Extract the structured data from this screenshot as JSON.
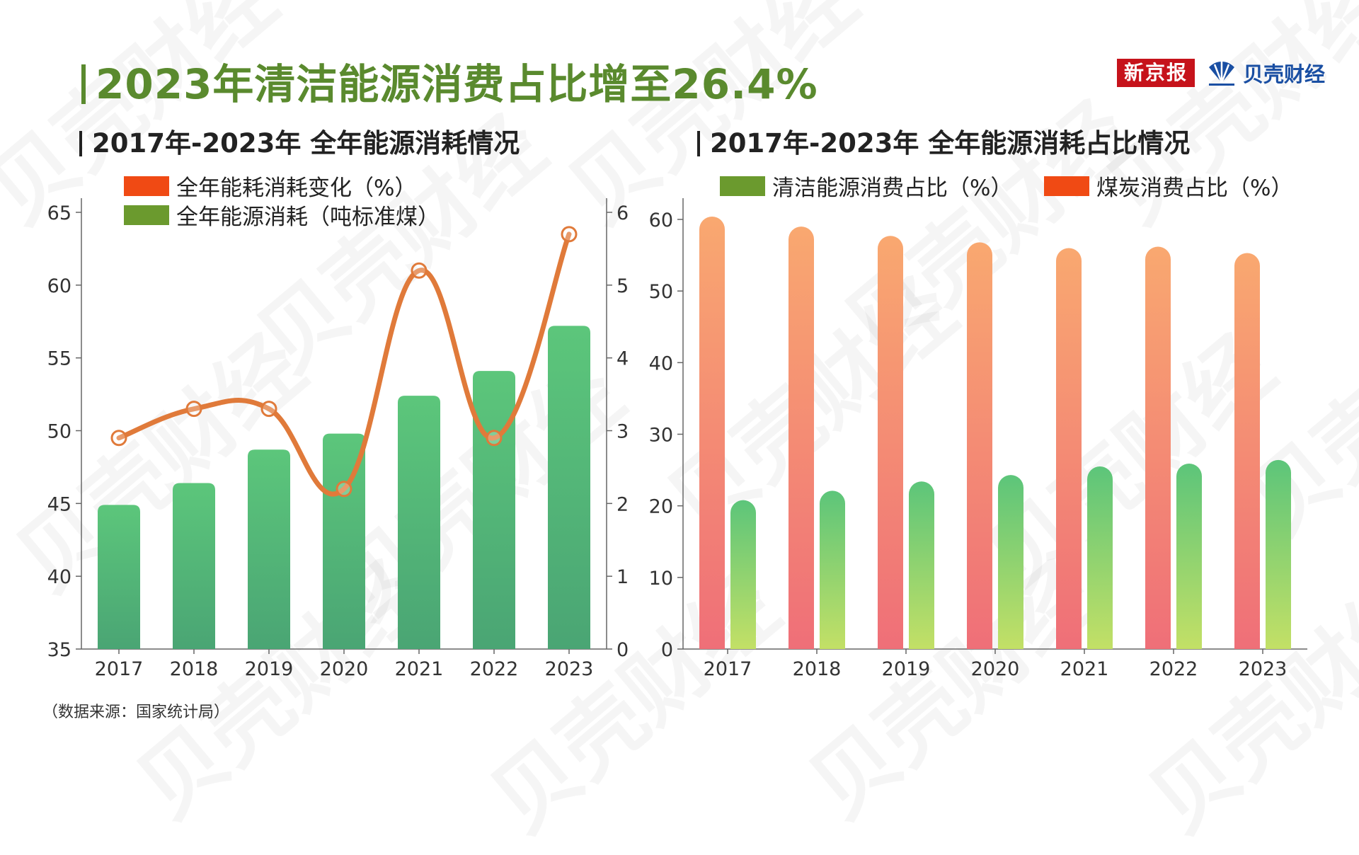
{
  "header": {
    "title": "2023年清洁能源消费占比增至26.4%",
    "brand_xjb": "新京报",
    "brand_bk": "贝壳财经"
  },
  "watermark": "贝壳财经",
  "source": "（数据来源：国家统计局）",
  "colors": {
    "title_green": "#5a8a2e",
    "bar_green": "#57c278",
    "line_orange": "#e07a3a",
    "coal_top": "#f9a870",
    "coal_bottom": "#ef6f78",
    "clean_top": "#5cc57a",
    "clean_bottom": "#c3e066",
    "legend_orange": "#f04a14",
    "legend_green": "#6b9a2e"
  },
  "chart_data": [
    {
      "type": "bar",
      "title": "2017年-2023年 全年能源消耗情况",
      "categories": [
        "2017",
        "2018",
        "2019",
        "2020",
        "2021",
        "2022",
        "2023"
      ],
      "series": [
        {
          "name": "全年能源消耗（吨标准煤）",
          "type": "bar",
          "axis": "left",
          "values": [
            44.9,
            46.4,
            48.7,
            49.8,
            52.4,
            54.1,
            57.2
          ]
        },
        {
          "name": "全年能耗消耗变化（%）",
          "type": "line",
          "axis": "right",
          "values": [
            2.9,
            3.3,
            3.3,
            2.2,
            5.2,
            2.9,
            5.7
          ]
        }
      ],
      "y_left": {
        "ticks": [
          35,
          40,
          45,
          50,
          55,
          60,
          65
        ],
        "ylim": [
          35,
          65
        ]
      },
      "y_right": {
        "ticks": [
          0,
          1,
          2,
          3,
          4,
          5,
          6
        ],
        "ylim": [
          0,
          6
        ]
      },
      "legend_placement": "top-left"
    },
    {
      "type": "bar",
      "title": "2017年-2023年 全年能源消耗占比情况",
      "categories": [
        "2017",
        "2018",
        "2019",
        "2020",
        "2021",
        "2022",
        "2023"
      ],
      "series": [
        {
          "name": "煤炭消费占比（%）",
          "values": [
            60.4,
            59.0,
            57.7,
            56.8,
            56.0,
            56.2,
            55.3
          ]
        },
        {
          "name": "清洁能源消费占比（%）",
          "values": [
            20.8,
            22.1,
            23.4,
            24.3,
            25.5,
            25.9,
            26.4
          ]
        }
      ],
      "y": {
        "ticks": [
          0,
          10,
          20,
          30,
          40,
          50,
          60
        ],
        "ylim": [
          0,
          60
        ]
      },
      "legend_placement": "top"
    }
  ]
}
